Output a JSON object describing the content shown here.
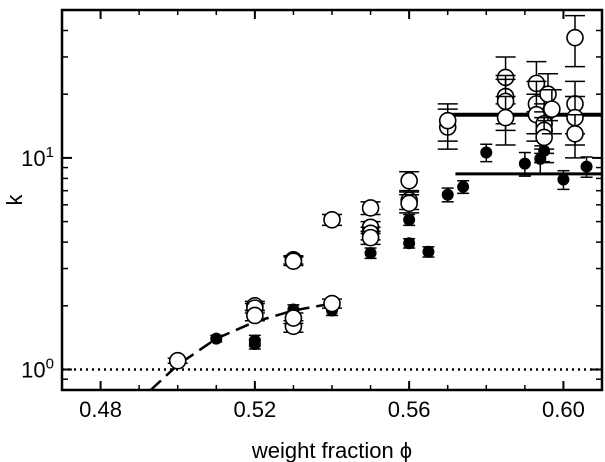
{
  "chart_data": {
    "type": "scatter",
    "xlabel": "weight fraction ϕ",
    "ylabel": "k",
    "xlim": [
      0.47,
      0.61
    ],
    "ylim": [
      0.8,
      50
    ],
    "y_scale": "log",
    "grid": false,
    "legend": "none",
    "x_ticks": [
      {
        "value": 0.48,
        "label": "0.48"
      },
      {
        "value": 0.52,
        "label": "0.52"
      },
      {
        "value": 0.56,
        "label": "0.56"
      },
      {
        "value": 0.6,
        "label": "0.60"
      }
    ],
    "y_ticks": [
      {
        "value": 1,
        "label": "10",
        "exp": "0"
      },
      {
        "value": 10,
        "label": "10",
        "exp": "1"
      }
    ],
    "series": [
      {
        "marker": "filled-circle",
        "color": "#000000",
        "points": [
          {
            "x": 0.51,
            "y": 1.4,
            "err": 0.05
          },
          {
            "x": 0.52,
            "y": 1.37,
            "err": 0.08
          },
          {
            "x": 0.52,
            "y": 1.32,
            "err": 0.07
          },
          {
            "x": 0.53,
            "y": 1.92,
            "err": 0.1
          },
          {
            "x": 0.53,
            "y": 1.82,
            "err": 0.09
          },
          {
            "x": 0.54,
            "y": 1.9,
            "err": 0.1
          },
          {
            "x": 0.55,
            "y": 3.55,
            "err": 0.2
          },
          {
            "x": 0.56,
            "y": 5.1,
            "err": 0.3
          },
          {
            "x": 0.56,
            "y": 3.95,
            "err": 0.2
          },
          {
            "x": 0.565,
            "y": 3.6,
            "err": 0.2
          },
          {
            "x": 0.57,
            "y": 6.7,
            "err": 0.5
          },
          {
            "x": 0.574,
            "y": 7.3,
            "err": 0.5
          },
          {
            "x": 0.58,
            "y": 10.6,
            "err": 1.0
          },
          {
            "x": 0.59,
            "y": 9.4,
            "err": 1.2
          },
          {
            "x": 0.594,
            "y": 9.9,
            "err": 1.5
          },
          {
            "x": 0.595,
            "y": 10.8,
            "err": 1.2
          },
          {
            "x": 0.6,
            "y": 7.9,
            "err": 0.8
          },
          {
            "x": 0.606,
            "y": 9.1,
            "err": 1.0
          }
        ]
      },
      {
        "marker": "open-circle",
        "color": "#000000",
        "points": [
          {
            "x": 0.5,
            "y": 1.1,
            "err": 0.03
          },
          {
            "x": 0.52,
            "y": 2.0,
            "err": 0.1
          },
          {
            "x": 0.52,
            "y": 1.95,
            "err": 0.1
          },
          {
            "x": 0.52,
            "y": 1.8,
            "err": 0.1
          },
          {
            "x": 0.53,
            "y": 3.3,
            "err": 0.15
          },
          {
            "x": 0.53,
            "y": 3.25,
            "err": 0.15
          },
          {
            "x": 0.53,
            "y": 1.6,
            "err": 0.1
          },
          {
            "x": 0.53,
            "y": 1.75,
            "err": 0.1
          },
          {
            "x": 0.54,
            "y": 2.05,
            "err": 0.1
          },
          {
            "x": 0.54,
            "y": 5.1,
            "err": 0.3
          },
          {
            "x": 0.55,
            "y": 5.8,
            "err": 0.4
          },
          {
            "x": 0.55,
            "y": 4.7,
            "err": 0.3
          },
          {
            "x": 0.55,
            "y": 4.4,
            "err": 0.3
          },
          {
            "x": 0.55,
            "y": 4.2,
            "err": 0.3
          },
          {
            "x": 0.56,
            "y": 7.8,
            "err": 0.8
          },
          {
            "x": 0.56,
            "y": 6.3,
            "err": 0.6
          },
          {
            "x": 0.56,
            "y": 6.1,
            "err": 0.6
          },
          {
            "x": 0.57,
            "y": 14.0,
            "err": 3.0
          },
          {
            "x": 0.57,
            "y": 15.0,
            "err": 3.0
          },
          {
            "x": 0.585,
            "y": 24.0,
            "err": 6.0
          },
          {
            "x": 0.585,
            "y": 19.5,
            "err": 5.0
          },
          {
            "x": 0.585,
            "y": 18.5,
            "err": 5.0
          },
          {
            "x": 0.585,
            "y": 15.5,
            "err": 4.0
          },
          {
            "x": 0.593,
            "y": 22.5,
            "err": 6.0
          },
          {
            "x": 0.593,
            "y": 18.0,
            "err": 5.0
          },
          {
            "x": 0.593,
            "y": 16.0,
            "err": 4.0
          },
          {
            "x": 0.595,
            "y": 14.5,
            "err": 3.5
          },
          {
            "x": 0.595,
            "y": 13.5,
            "err": 3.0
          },
          {
            "x": 0.595,
            "y": 12.5,
            "err": 3.0
          },
          {
            "x": 0.596,
            "y": 20.0,
            "err": 5.0
          },
          {
            "x": 0.597,
            "y": 17.0,
            "err": 4.0
          },
          {
            "x": 0.603,
            "y": 37.0,
            "err": 10.0
          },
          {
            "x": 0.603,
            "y": 18.0,
            "err": 5.0
          },
          {
            "x": 0.603,
            "y": 15.5,
            "err": 4.0
          },
          {
            "x": 0.603,
            "y": 13.0,
            "err": 3.0
          }
        ]
      }
    ],
    "reference_lines": [
      {
        "style": "dotted",
        "y": 1.0,
        "x_from": 0.47,
        "x_to": 0.61
      },
      {
        "style": "solid-thick",
        "y": 16.0,
        "x_from": 0.57,
        "x_to": 0.61
      },
      {
        "style": "solid",
        "y": 8.4,
        "x_from": 0.572,
        "x_to": 0.61
      },
      {
        "style": "dashed-curve",
        "points": [
          [
            0.493,
            0.8
          ],
          [
            0.5,
            1.05
          ],
          [
            0.51,
            1.4
          ],
          [
            0.52,
            1.68
          ],
          [
            0.53,
            1.9
          ],
          [
            0.54,
            2.05
          ]
        ]
      }
    ]
  }
}
